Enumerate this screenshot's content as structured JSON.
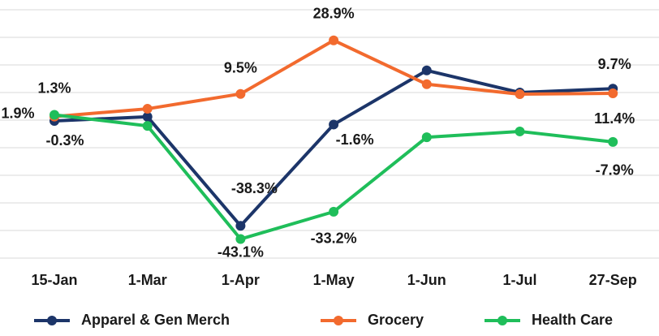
{
  "chart_data": {
    "type": "line",
    "categories": [
      "15-Jan",
      "1-Mar",
      "1-Apr",
      "1-May",
      "1-Jun",
      "1-Jul",
      "27-Sep"
    ],
    "series": [
      {
        "name": "Apparel & Gen Merch",
        "color": "#1c3569",
        "values": [
          -0.3,
          1.2,
          -38.3,
          -1.6,
          18,
          10,
          11.4
        ],
        "value_labels": [
          "-0.3%",
          null,
          "-38.3%",
          "-1.6%",
          null,
          null,
          "11.4%"
        ]
      },
      {
        "name": "Grocery",
        "color": "#f26a2e",
        "values": [
          1.3,
          4.1,
          9.5,
          28.9,
          13,
          9.4,
          9.7
        ],
        "value_labels": [
          "1.3%",
          null,
          "9.5%",
          "28.9%",
          null,
          null,
          "9.7%"
        ]
      },
      {
        "name": "Health Care",
        "color": "#1fbe5a",
        "values": [
          1.9,
          -2.1,
          -43.1,
          -33.2,
          -6.2,
          -4.1,
          -7.9
        ],
        "value_labels": [
          "1.9%",
          null,
          "-43.1%",
          "-33.2%",
          null,
          null,
          "-7.9%"
        ]
      }
    ],
    "ylim": [
      -50,
      40
    ],
    "yticks": [
      -50,
      -40,
      -30,
      -20,
      -10,
      0,
      10,
      20,
      30,
      40
    ],
    "grid": true,
    "legend": "bottom"
  }
}
